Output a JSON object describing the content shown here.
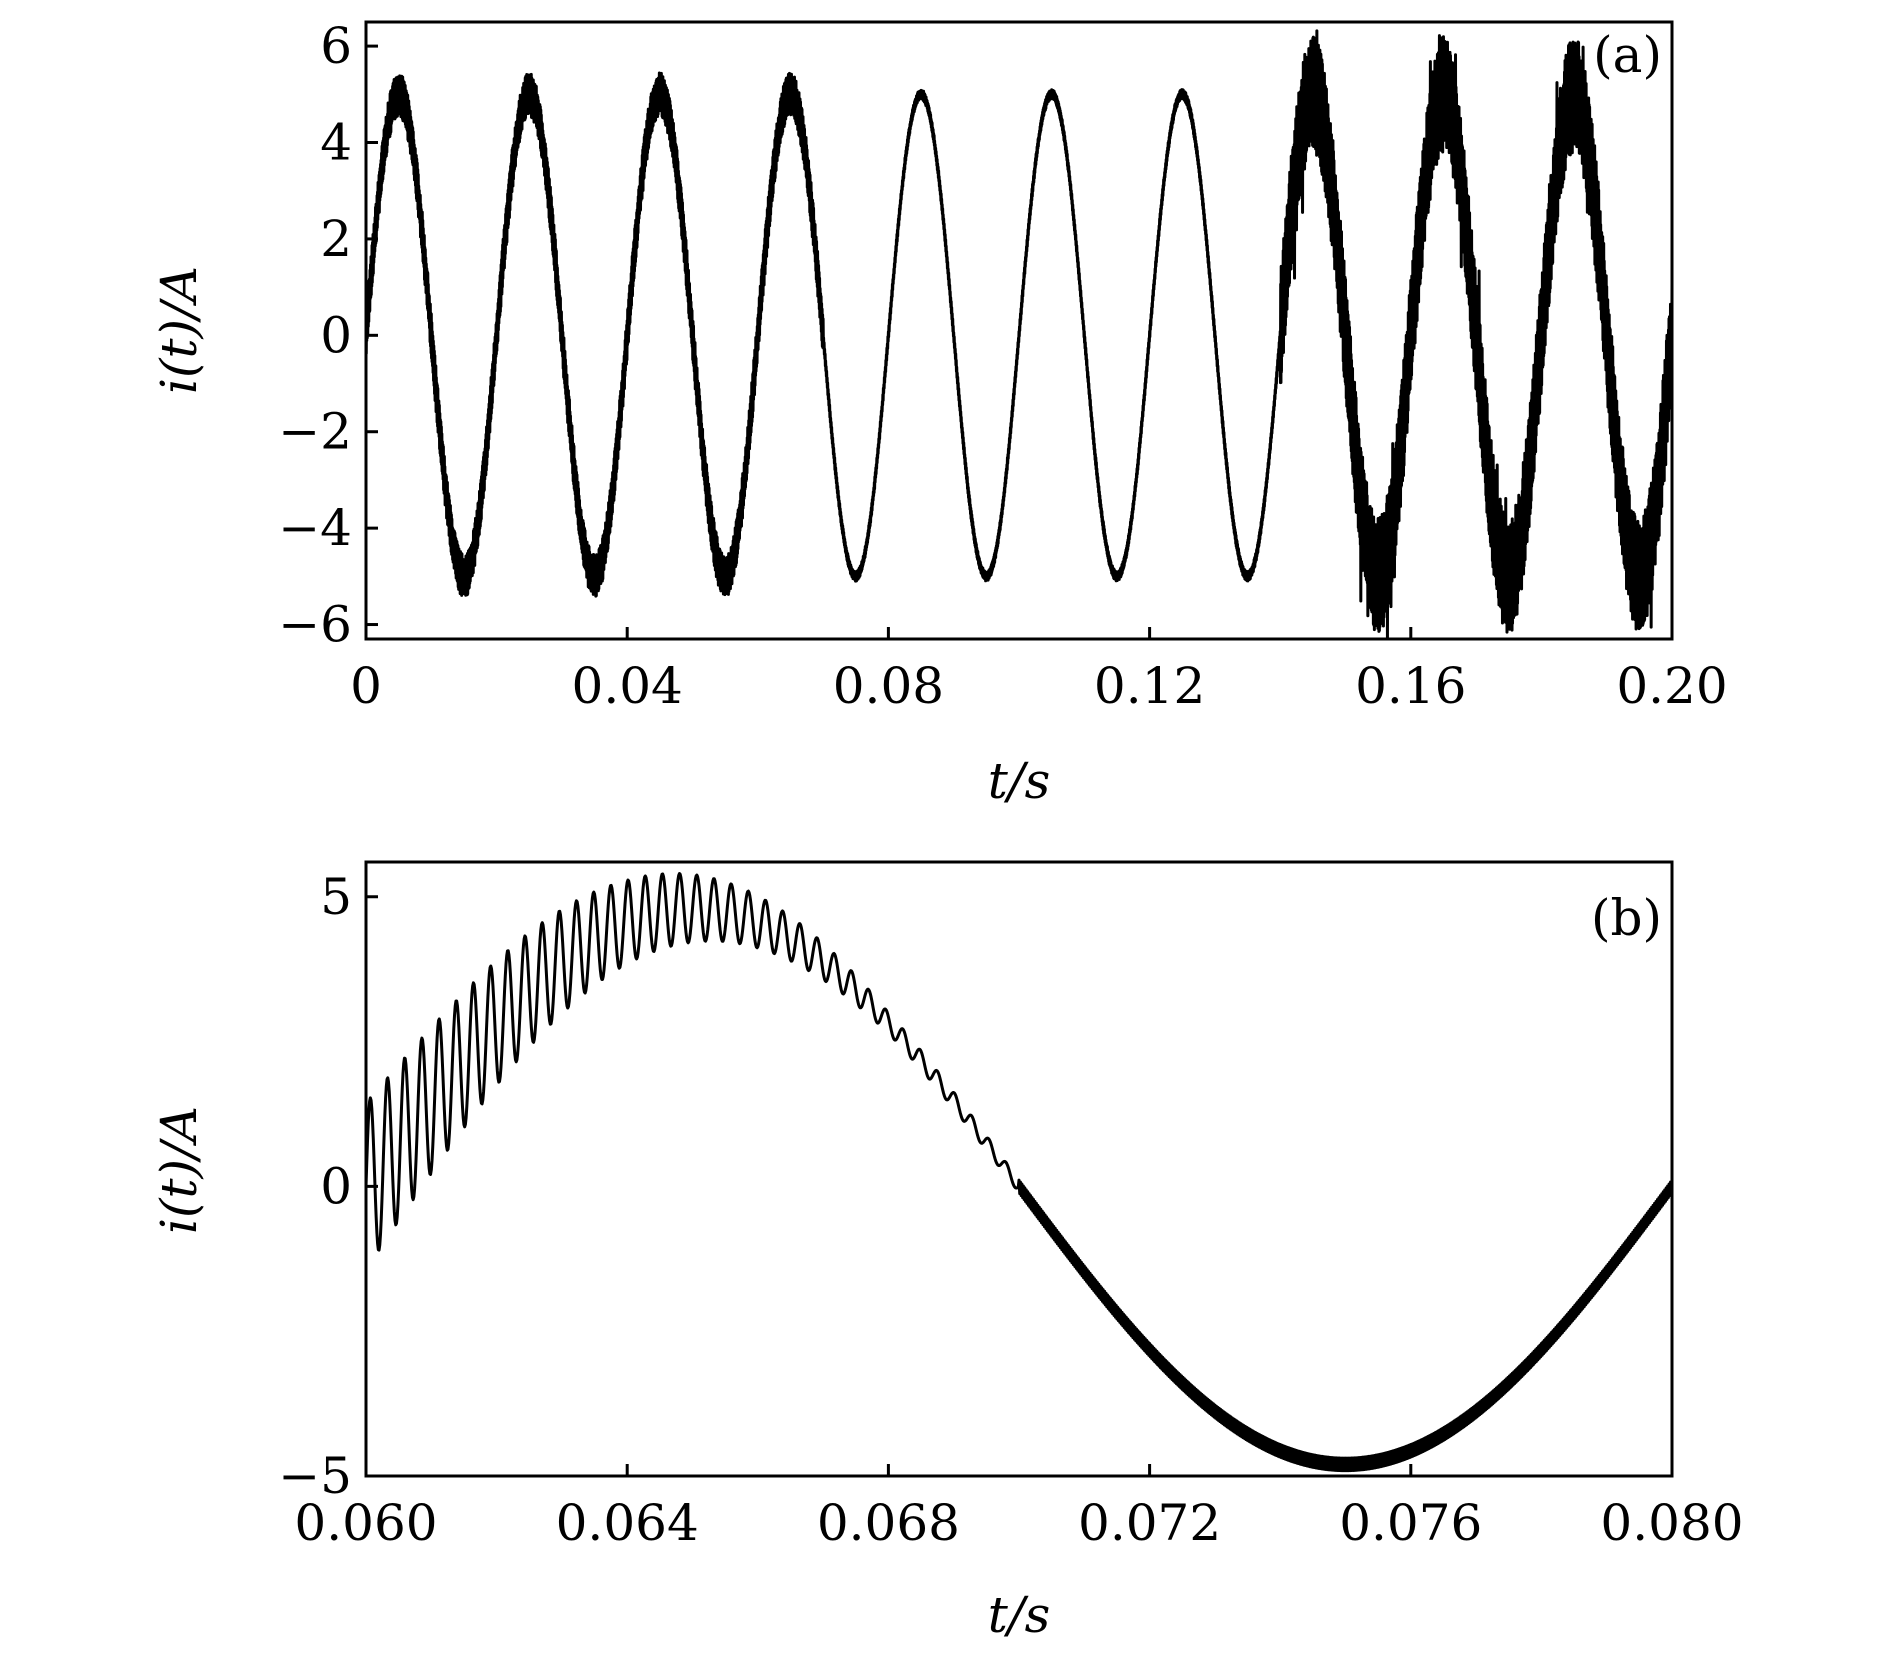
{
  "chart_data": [
    {
      "type": "line",
      "panel_label": "(a)",
      "title": "",
      "xlabel": "t/s",
      "ylabel": "i(t)/A",
      "xlim": [
        0,
        0.2
      ],
      "ylim": [
        -6.3,
        6.5
      ],
      "xticks": [
        0,
        0.04,
        0.08,
        0.12,
        0.16,
        0.2
      ],
      "xtick_labels": [
        "0",
        "0.04",
        "0.08",
        "0.12",
        "0.16",
        "0.20"
      ],
      "yticks": [
        -6,
        -4,
        -2,
        0,
        2,
        4,
        6
      ],
      "ytick_labels": [
        "−6",
        "−4",
        "−2",
        "0",
        "2",
        "4",
        "6"
      ],
      "grid": false,
      "line_color": "#000000",
      "series": [
        {
          "frequency_hz": 50,
          "amplitude": 5,
          "segments": [
            {
              "t_start": 0,
              "t_end": 0.07,
              "ripple_amplitude": 0.45
            },
            {
              "t_start": 0.07,
              "t_end": 0.14,
              "ripple_amplitude": 0.1
            },
            {
              "t_start": 0.14,
              "t_end": 0.2,
              "ripple_amplitude": 1.2
            }
          ]
        }
      ]
    },
    {
      "type": "line",
      "panel_label": "(b)",
      "title": "",
      "xlabel": "t/s",
      "ylabel": "i(t)/A",
      "xlim": [
        0.06,
        0.08
      ],
      "ylim": [
        -5,
        5.6
      ],
      "xticks": [
        0.06,
        0.064,
        0.068,
        0.072,
        0.076,
        0.08
      ],
      "xtick_labels": [
        "0.060",
        "0.064",
        "0.068",
        "0.072",
        "0.076",
        "0.080"
      ],
      "yticks": [
        -5,
        0,
        5
      ],
      "ytick_labels": [
        "−5",
        "0",
        "5"
      ],
      "grid": false,
      "line_color": "#000000",
      "series": [
        {
          "frequency_hz": 50,
          "amplitude": 4.8,
          "ripple": [
            {
              "t": 0.06,
              "amplitude": 1.6
            },
            {
              "t": 0.064,
              "amplitude": 0.8
            },
            {
              "t": 0.066,
              "amplitude": 0.5
            },
            {
              "t": 0.068,
              "amplitude": 0.2
            },
            {
              "t": 0.07,
              "amplitude": 0.12
            },
            {
              "t": 0.08,
              "amplitude": 0.12
            }
          ]
        }
      ]
    }
  ]
}
